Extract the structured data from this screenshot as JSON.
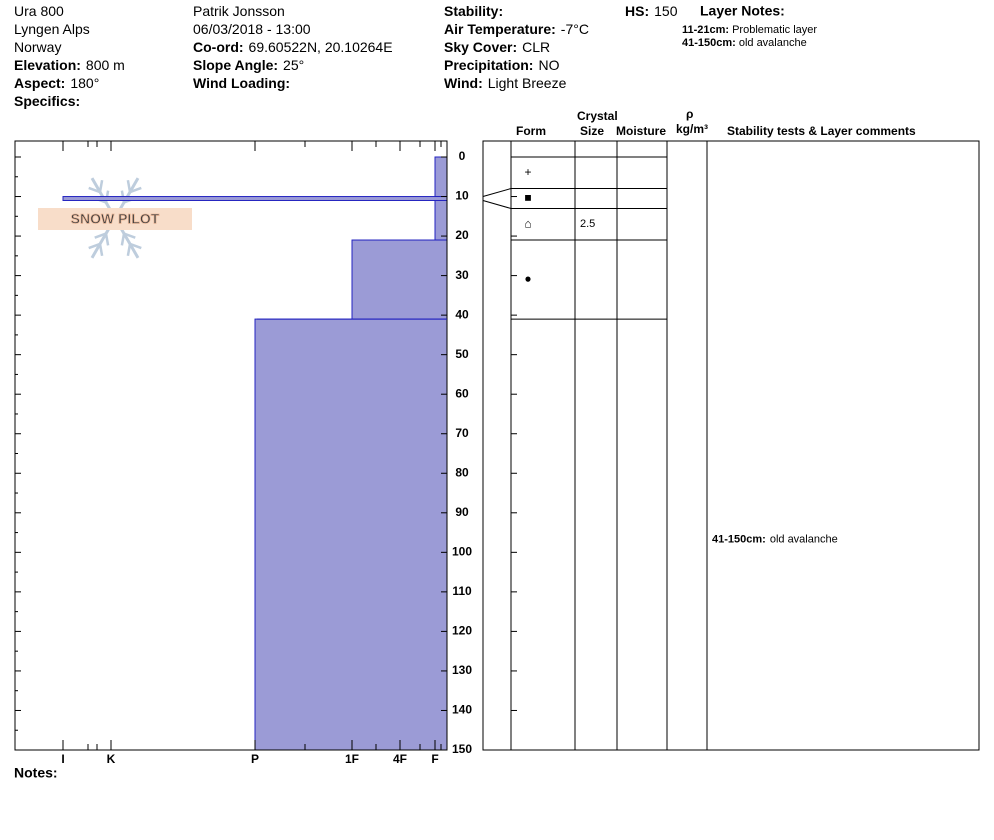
{
  "header": {
    "col1": [
      {
        "text": "Ura 800"
      },
      {
        "text": "Lyngen Alps"
      },
      {
        "text": "Norway"
      },
      {
        "label": "Elevation:",
        "value": "800 m"
      },
      {
        "label": "Aspect:",
        "value": "180°"
      },
      {
        "label": "Specifics:"
      }
    ],
    "col2": [
      {
        "text": "Patrik Jonsson"
      },
      {
        "text": "06/03/2018 - 13:00"
      },
      {
        "label": "Co-ord:",
        "value": "69.60522N, 20.10264E"
      },
      {
        "label": "Slope Angle:",
        "value": "25°"
      },
      {
        "label": "Wind Loading:"
      }
    ],
    "col3": [
      {
        "label": "Stability:"
      },
      {
        "label": "Air Temperature:",
        "value": "-7°C"
      },
      {
        "label": "Sky Cover:",
        "value": "CLR"
      },
      {
        "label": "Precipitation:",
        "value": "NO"
      },
      {
        "label": "Wind:",
        "value": "Light Breeze"
      }
    ],
    "hs": {
      "label": "HS:",
      "value": 150
    }
  },
  "layer_notes": {
    "title": "Layer Notes:",
    "items": [
      {
        "range": "11-21cm:",
        "text": "Problematic layer"
      },
      {
        "range": "41-150cm:",
        "text": "old avalanche"
      }
    ]
  },
  "logo": "SNOW PILOT",
  "hardness_axis": {
    "labels": [
      "I",
      "K",
      "P",
      "1F",
      "4F",
      "F"
    ]
  },
  "depth_axis": {
    "range": [
      0,
      150
    ],
    "ticks": [
      0,
      10,
      20,
      30,
      40,
      50,
      60,
      70,
      80,
      90,
      100,
      110,
      120,
      130,
      140,
      150
    ]
  },
  "table_headers": {
    "crystal": "Crystal",
    "form": "Form",
    "size": "Size",
    "moisture": "Moisture",
    "rho": "ρ",
    "density_unit": "kg/m³",
    "comments": "Stability tests & Layer comments"
  },
  "layers": [
    {
      "top": 0,
      "bottom": 10,
      "hardness": "F",
      "form": "+"
    },
    {
      "top": 10,
      "bottom": 11,
      "hardness": "I",
      "form": "■"
    },
    {
      "top": 11,
      "bottom": 21,
      "hardness": "F",
      "form": "⌂",
      "size": 2.5
    },
    {
      "top": 21,
      "bottom": 41,
      "hardness": "1F",
      "form": "●"
    },
    {
      "top": 41,
      "bottom": 150,
      "hardness": "P",
      "comment": {
        "range": "41-150cm:",
        "text": "old avalanche"
      }
    }
  ],
  "notes_label": "Notes:"
}
